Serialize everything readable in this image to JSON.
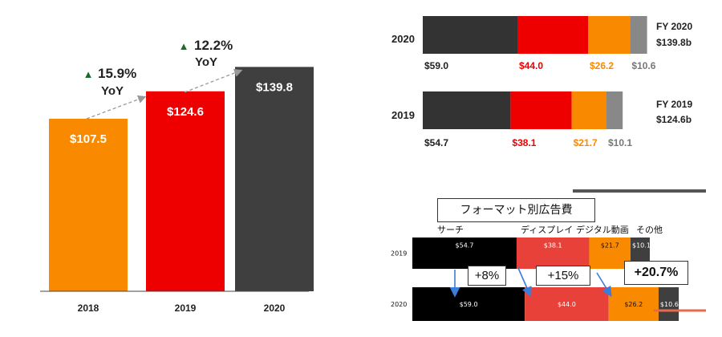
{
  "colors": {
    "orange": "#F98A00",
    "red": "#EE0000",
    "dark": "#3F3F3F",
    "gray": "#888888",
    "black": "#000000",
    "brightred": "#E8413A",
    "growth_green": "#1E6B2E",
    "accent_line": "#E86A4A"
  },
  "chart_data": [
    {
      "type": "bar",
      "categories": [
        "2018",
        "2019",
        "2020"
      ],
      "values": [
        107.5,
        124.6,
        139.8
      ],
      "value_labels": [
        "$107.5",
        "$124.6",
        "$139.8"
      ],
      "bar_colors": [
        "#F98A00",
        "#EE0000",
        "#3F3F3F"
      ],
      "annotations": [
        {
          "between": [
            "2018",
            "2019"
          ],
          "pct": "15.9%",
          "unit": "YoY",
          "marker": "▲"
        },
        {
          "between": [
            "2019",
            "2020"
          ],
          "pct": "12.2%",
          "unit": "YoY",
          "marker": "▲"
        }
      ],
      "ylim": [
        0,
        150
      ]
    },
    {
      "type": "bar",
      "orientation": "horizontal",
      "stacked": true,
      "categories": [
        "2020",
        "2019"
      ],
      "series": [
        {
          "values": [
            59.0,
            54.7
          ],
          "labels": [
            "$59.0",
            "$54.7"
          ],
          "color": "#333333",
          "label_color": "#222222"
        },
        {
          "values": [
            44.0,
            38.1
          ],
          "labels": [
            "$44.0",
            "$38.1"
          ],
          "color": "#EE0000",
          "label_color": "#EE0000"
        },
        {
          "values": [
            26.2,
            21.7
          ],
          "labels": [
            "$26.2",
            "$21.7"
          ],
          "color": "#F98A00",
          "label_color": "#F98A00"
        },
        {
          "values": [
            10.6,
            10.1
          ],
          "labels": [
            "$10.6",
            "$10.1"
          ],
          "color": "#888888",
          "label_color": "#777777"
        }
      ],
      "totals": [
        {
          "fy": "FY 2020",
          "total": "$139.8b"
        },
        {
          "fy": "FY 2019",
          "total": "$124.6b"
        }
      ]
    },
    {
      "type": "bar",
      "orientation": "horizontal",
      "stacked": true,
      "title": "フォーマット別広告費",
      "categories": [
        "2019",
        "2020"
      ],
      "series": [
        {
          "name": "サーチ",
          "values": [
            54.7,
            59.0
          ],
          "labels": [
            "$54.7",
            "$59.0"
          ],
          "color": "#000000"
        },
        {
          "name": "ディスプレイ",
          "values": [
            38.1,
            44.0
          ],
          "labels": [
            "$38.1",
            "$44.0"
          ],
          "color": "#E8413A"
        },
        {
          "name": "デジタル動画",
          "values": [
            21.7,
            26.2
          ],
          "labels": [
            "$21.7",
            "$26.2"
          ],
          "color": "#F98A00"
        },
        {
          "name": "その他",
          "values": [
            10.1,
            10.6
          ],
          "labels": [
            "$10.1",
            "$10.6"
          ],
          "color": "#3F3F3F"
        }
      ],
      "callouts": [
        "+8%",
        "+15%",
        "+20.7%"
      ]
    }
  ]
}
